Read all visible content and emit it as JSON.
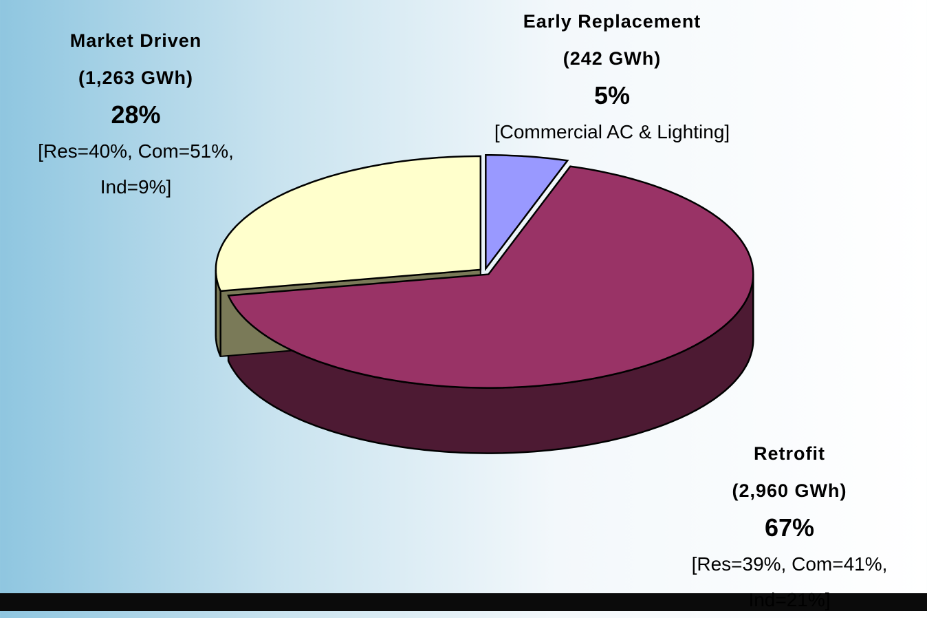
{
  "chart_data": {
    "type": "pie3d",
    "categories": [
      "Market Driven",
      "Early Replacement",
      "Retrofit"
    ],
    "values": [
      28,
      5,
      67
    ],
    "value_labels": [
      "28%",
      "5%",
      "67%"
    ],
    "energy_labels": [
      "(1,263 GWh)",
      "(242 GWh)",
      "(2,960 GWh)"
    ],
    "details": [
      "[Res=40%, Com=51%, Ind=9%]",
      "[Commercial AC & Lighting]",
      "[Res=39%, Com=41%, Ind=21%]"
    ],
    "colors": [
      "#ffffcc",
      "#9999ff",
      "#993366"
    ],
    "side_colors": [
      "#7a7a58",
      "#4a4a88",
      "#4d1a33"
    ]
  }
}
